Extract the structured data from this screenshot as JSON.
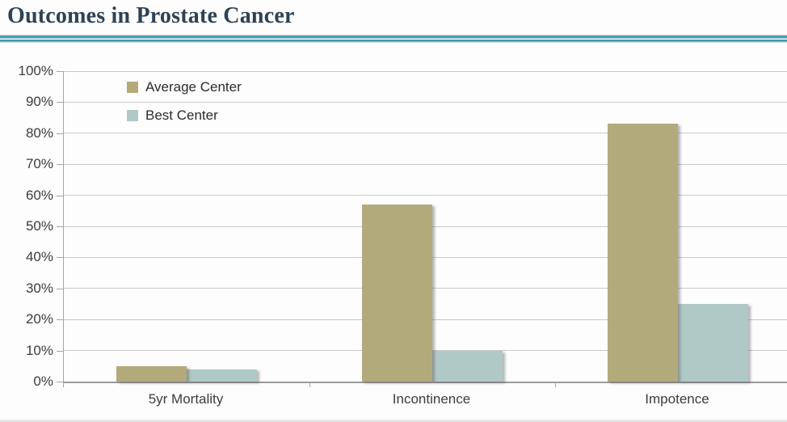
{
  "slide": {
    "title": "Outcomes in Prostate Cancer"
  },
  "colors": {
    "title_text": "#2e4254",
    "rule_teal": "#4f9fb2",
    "chart_text": "#3c3c3c",
    "gridline": "#c9c9c9",
    "axis": "#9b9b9b",
    "series_average": "#b3aa7c",
    "series_best": "#b0c9c7"
  },
  "chart_data": {
    "type": "bar",
    "title": "",
    "categories": [
      "5yr Mortality",
      "Incontinence",
      "Impotence"
    ],
    "series": [
      {
        "name": "Average Center",
        "color": "#b3aa7c",
        "values": [
          5,
          57,
          83
        ]
      },
      {
        "name": "Best Center",
        "color": "#b0c9c7",
        "values": [
          4,
          10,
          25
        ]
      }
    ],
    "xlabel": "",
    "ylabel": "",
    "ylim": [
      0,
      100
    ],
    "ytick_step": 10,
    "yticks": [
      "100%",
      "90%",
      "80%",
      "70%",
      "60%",
      "50%",
      "40%",
      "30%",
      "20%",
      "10%",
      "0%"
    ],
    "grid": true,
    "legend_position": "inside-top-left"
  }
}
